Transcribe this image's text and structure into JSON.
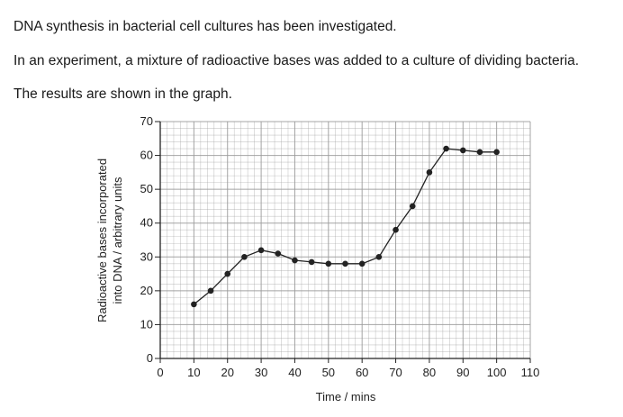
{
  "intro": {
    "line1": "DNA synthesis in bacterial cell cultures has been investigated.",
    "line2": "In an experiment, a mixture of radioactive bases was added to a culture of dividing bacteria.",
    "line3": "The results are shown in the graph."
  },
  "chart_data": {
    "type": "line",
    "title": "",
    "xlabel": "Time / mins",
    "ylabel_lines": [
      "Radioactive bases incorporated",
      "into DNA / arbitrary units"
    ],
    "xlim": [
      0,
      110
    ],
    "ylim": [
      0,
      70
    ],
    "x_ticks": [
      0,
      10,
      20,
      30,
      40,
      50,
      60,
      70,
      80,
      90,
      100,
      110
    ],
    "y_ticks": [
      0,
      10,
      20,
      30,
      40,
      50,
      60,
      70
    ],
    "grid": true,
    "series": [
      {
        "x": [
          10,
          15,
          20,
          25,
          30,
          35,
          40,
          45,
          50,
          55,
          60,
          65,
          70,
          75,
          80,
          85,
          90,
          95,
          100
        ],
        "y": [
          16,
          20,
          25,
          30,
          32,
          31,
          29,
          28.5,
          28,
          28,
          28,
          30,
          38,
          45,
          55,
          62,
          61.5,
          61,
          61
        ]
      }
    ],
    "colors": {
      "line": "#222222",
      "grid": "#9a9a9a",
      "axis": "#222222"
    }
  }
}
